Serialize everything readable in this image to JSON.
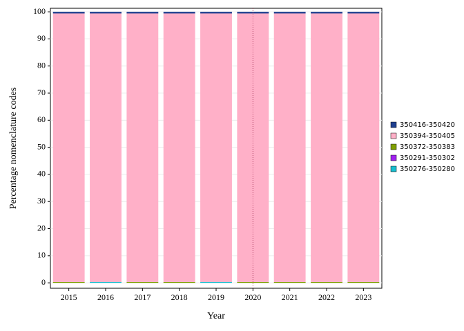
{
  "chart_data": {
    "type": "stacked_bar",
    "x_label": "Year",
    "y_label": "Percentage nomenclature codes",
    "categories": [
      "2015",
      "2016",
      "2017",
      "2018",
      "2019",
      "2020",
      "2021",
      "2022",
      "2023"
    ],
    "series": [
      {
        "name": "350276-350280",
        "color": "#17becf",
        "values": [
          0,
          0.3,
          0,
          0,
          0.3,
          0,
          0,
          0,
          0
        ]
      },
      {
        "name": "350291-350302",
        "color": "#a020f0",
        "values": [
          0,
          0,
          0,
          0,
          0,
          0,
          0,
          0,
          0
        ]
      },
      {
        "name": "350372-350383",
        "color": "#7f9f00",
        "values": [
          0.3,
          0,
          0.3,
          0.3,
          0,
          0.3,
          0.3,
          0.3,
          0.3
        ]
      },
      {
        "name": "350394-350405",
        "color": "#ffb0c8",
        "values": [
          99.1,
          99.1,
          99.1,
          99.1,
          99.1,
          99.1,
          99.1,
          99.1,
          99.1
        ]
      },
      {
        "name": "350416-350420",
        "color": "#1f3f8f",
        "values": [
          0.6,
          0.6,
          0.6,
          0.6,
          0.6,
          0.6,
          0.6,
          0.6,
          0.6
        ]
      }
    ],
    "ylim": [
      -2,
      101.3
    ],
    "yticks": [
      0,
      10,
      20,
      30,
      40,
      50,
      60,
      70,
      80,
      90,
      100
    ],
    "grid": true,
    "legend": "right"
  }
}
